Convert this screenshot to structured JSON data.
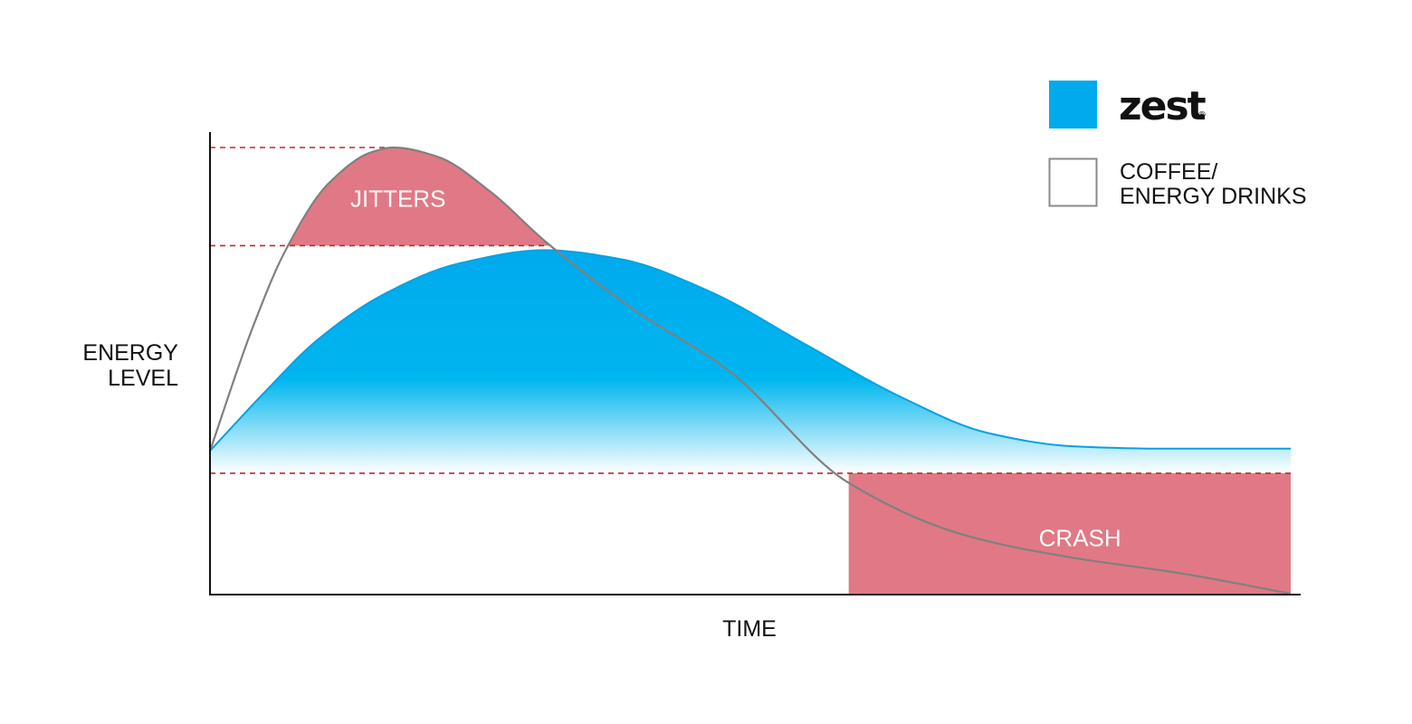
{
  "chart_data": {
    "type": "area",
    "xlabel": "TIME",
    "ylabel_lines": [
      "ENERGY",
      "LEVEL"
    ],
    "xlim": [
      0,
      100
    ],
    "ylim": [
      0,
      100
    ],
    "grid": false,
    "legend_position": "top-right",
    "series": [
      {
        "name": "zest",
        "style": "filled-area",
        "color": "#00aaed",
        "points": [
          [
            0,
            32
          ],
          [
            5,
            45
          ],
          [
            10,
            57
          ],
          [
            16,
            67
          ],
          [
            23,
            74
          ],
          [
            31,
            77
          ],
          [
            38,
            75
          ],
          [
            46,
            68
          ],
          [
            55,
            56
          ],
          [
            64,
            44
          ],
          [
            72,
            36
          ],
          [
            80,
            33
          ],
          [
            88,
            32.5
          ],
          [
            100,
            32.5
          ]
        ]
      },
      {
        "name": "COFFEE/ ENERGY DRINKS",
        "style": "line",
        "color": "#808080",
        "points": [
          [
            0,
            32
          ],
          [
            4,
            60
          ],
          [
            7,
            77
          ],
          [
            11,
            92
          ],
          [
            15,
            99
          ],
          [
            17,
            100
          ],
          [
            21,
            98
          ],
          [
            26,
            90
          ],
          [
            31,
            79
          ],
          [
            39,
            64
          ],
          [
            48,
            50
          ],
          [
            59,
            25
          ],
          [
            70,
            13
          ],
          [
            80,
            8
          ],
          [
            90,
            4.5
          ],
          [
            100,
            0
          ]
        ]
      }
    ],
    "reference_lines": [
      {
        "y": 100,
        "color": "#c0272d"
      },
      {
        "y": 78,
        "color": "#c0272d"
      },
      {
        "y": 27,
        "color": "#c0272d"
      }
    ],
    "annotations": [
      {
        "label": "JITTERS",
        "x": 17.4,
        "y": 88.5,
        "color": "#e07985"
      },
      {
        "label": "CRASH",
        "x": 80.5,
        "y": 12.5,
        "x_range": [
          59.1,
          100
        ],
        "y_range": [
          0,
          27
        ],
        "color": "#e07985"
      }
    ]
  }
}
